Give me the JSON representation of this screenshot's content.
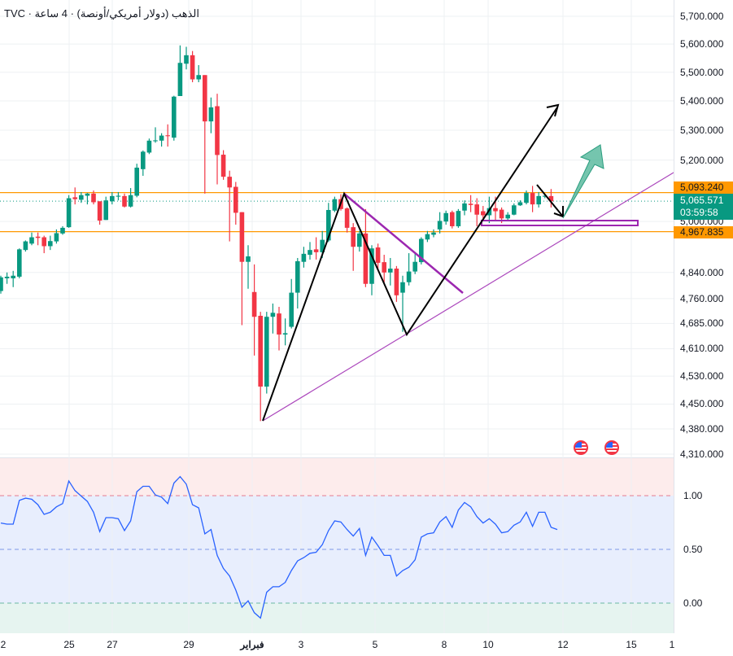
{
  "header": {
    "title": "TVC · الذهب (دولار أمريكي/أونصة) · 4 ساعة"
  },
  "colors": {
    "up": "#089981",
    "down": "#f23645",
    "orange": "#ff9800",
    "purple": "#9c27b0",
    "indicator": "#2962ff"
  },
  "price_axis": {
    "labels": [
      "5,700.000",
      "5,600.000",
      "5,500.000",
      "5,400.000",
      "5,300.000",
      "5,200.000",
      "5,000.000",
      "4,840.000",
      "4,760.000",
      "4,685.000",
      "4,610.000",
      "4,530.000",
      "4,450.000",
      "4,380.000",
      "4,310.000"
    ],
    "values": [
      5700,
      5600,
      5500,
      5400,
      5300,
      5200,
      5000,
      4840,
      4760,
      4685,
      4610,
      4530,
      4450,
      4380,
      4310
    ],
    "scale": "log",
    "range": [
      4310,
      5700
    ]
  },
  "levels": {
    "resistance": {
      "label": "5,093.240",
      "value": 5093.24
    },
    "support": {
      "label": "4,967.835",
      "value": 4967.835
    },
    "last_price": {
      "label": "5,065.571",
      "value": 5065.571,
      "countdown": "03:59:58"
    }
  },
  "time_axis": {
    "labels": [
      "2",
      "25",
      "27",
      "29",
      "فبراير",
      "3",
      "5",
      "8",
      "10",
      "12",
      "15",
      "1"
    ]
  },
  "indicator": {
    "labels": [
      "1.00",
      "0.50",
      "0.00"
    ],
    "range": [
      -0.28,
      1.34
    ],
    "values": [
      0.74,
      0.73,
      0.73,
      0.95,
      0.97,
      0.96,
      0.91,
      0.82,
      0.84,
      0.89,
      0.92,
      1.13,
      1.04,
      0.99,
      0.94,
      0.84,
      0.66,
      0.79,
      0.79,
      0.78,
      0.67,
      0.76,
      1.03,
      1.08,
      1.08,
      1.0,
      0.98,
      0.92,
      1.11,
      1.17,
      1.1,
      0.91,
      0.88,
      0.64,
      0.68,
      0.44,
      0.32,
      0.25,
      0.12,
      -0.04,
      0.02,
      -0.09,
      -0.14,
      0.1,
      0.15,
      0.15,
      0.19,
      0.3,
      0.39,
      0.42,
      0.46,
      0.47,
      0.54,
      0.67,
      0.76,
      0.75,
      0.68,
      0.62,
      0.69,
      0.44,
      0.61,
      0.53,
      0.44,
      0.44,
      0.25,
      0.3,
      0.33,
      0.4,
      0.61,
      0.64,
      0.65,
      0.75,
      0.8,
      0.7,
      0.86,
      0.93,
      0.89,
      0.8,
      0.74,
      0.78,
      0.73,
      0.65,
      0.66,
      0.72,
      0.75,
      0.84,
      0.71,
      0.84,
      0.84,
      0.7,
      0.68
    ]
  },
  "chart_data": {
    "type": "candlestick",
    "title": "TVC · الذهب (دولار أمريكي/أونصة) · 4 ساعة",
    "ylim": [
      4310,
      5700
    ],
    "ohlc": [
      [
        4783,
        4830,
        4775,
        4825
      ],
      [
        4822,
        4840,
        4805,
        4827
      ],
      [
        4822,
        4845,
        4795,
        4830
      ],
      [
        4827,
        4915,
        4822,
        4912
      ],
      [
        4910,
        4940,
        4905,
        4937
      ],
      [
        4930,
        4965,
        4925,
        4950
      ],
      [
        4952,
        4965,
        4925,
        4948
      ],
      [
        4950,
        4955,
        4900,
        4922
      ],
      [
        4922,
        4955,
        4910,
        4938
      ],
      [
        4937,
        4975,
        4930,
        4963
      ],
      [
        4962,
        4985,
        4958,
        4980
      ],
      [
        4982,
        5085,
        4980,
        5075
      ],
      [
        5078,
        5110,
        5055,
        5072
      ],
      [
        5070,
        5095,
        5060,
        5085
      ],
      [
        5083,
        5092,
        5055,
        5090
      ],
      [
        5090,
        5100,
        5055,
        5062
      ],
      [
        5065,
        5065,
        4990,
        5003
      ],
      [
        5005,
        5080,
        5005,
        5068
      ],
      [
        5065,
        5095,
        5055,
        5082
      ],
      [
        5080,
        5095,
        5068,
        5083
      ],
      [
        5082,
        5090,
        5045,
        5048
      ],
      [
        5048,
        5108,
        5045,
        5085
      ],
      [
        5083,
        5188,
        5078,
        5175
      ],
      [
        5170,
        5232,
        5148,
        5228
      ],
      [
        5225,
        5272,
        5220,
        5265
      ],
      [
        5263,
        5310,
        5258,
        5266
      ],
      [
        5265,
        5290,
        5245,
        5282
      ],
      [
        5283,
        5320,
        5245,
        5280
      ],
      [
        5275,
        5418,
        5265,
        5415
      ],
      [
        5417,
        5595,
        5417,
        5533
      ],
      [
        5530,
        5590,
        5510,
        5560
      ],
      [
        5560,
        5575,
        5465,
        5475
      ],
      [
        5475,
        5525,
        5465,
        5490
      ],
      [
        5490,
        5490,
        5090,
        5330
      ],
      [
        5330,
        5412,
        5290,
        5378
      ],
      [
        5382,
        5425,
        5120,
        5217
      ],
      [
        5218,
        5233,
        5135,
        5145
      ],
      [
        5145,
        5165,
        4937,
        5110
      ],
      [
        5112,
        5128,
        4990,
        5028
      ],
      [
        5030,
        5030,
        4680,
        4873
      ],
      [
        4873,
        4925,
        4790,
        4890
      ],
      [
        4780,
        4865,
        4590,
        4705
      ],
      [
        4708,
        4720,
        4402,
        4500
      ],
      [
        4500,
        4720,
        4480,
        4705
      ],
      [
        4705,
        4745,
        4655,
        4717
      ],
      [
        4715,
        4735,
        4605,
        4652
      ],
      [
        4652,
        4700,
        4620,
        4656
      ],
      [
        4675,
        4820,
        4670,
        4778
      ],
      [
        4778,
        4885,
        4730,
        4875
      ],
      [
        4873,
        4920,
        4855,
        4898
      ],
      [
        4895,
        4935,
        4880,
        4910
      ],
      [
        4912,
        4950,
        4880,
        4903
      ],
      [
        4903,
        4970,
        4885,
        4942
      ],
      [
        4940,
        5060,
        4935,
        5037
      ],
      [
        5035,
        5080,
        5030,
        5072
      ],
      [
        5072,
        5088,
        5035,
        5040
      ],
      [
        5042,
        5045,
        4965,
        4980
      ],
      [
        4982,
        4995,
        4845,
        4920
      ],
      [
        4920,
        4970,
        4905,
        4962
      ],
      [
        4962,
        5040,
        4795,
        4805
      ],
      [
        4805,
        4925,
        4770,
        4915
      ],
      [
        4918,
        4930,
        4845,
        4870
      ],
      [
        4872,
        4895,
        4810,
        4840
      ],
      [
        4840,
        4885,
        4800,
        4852
      ],
      [
        4852,
        4860,
        4750,
        4770
      ],
      [
        4778,
        4830,
        4660,
        4810
      ],
      [
        4810,
        4900,
        4800,
        4843
      ],
      [
        4843,
        4900,
        4835,
        4873
      ],
      [
        4872,
        4950,
        4865,
        4945
      ],
      [
        4943,
        4970,
        4935,
        4960
      ],
      [
        4958,
        4975,
        4950,
        4965
      ],
      [
        4975,
        5030,
        4962,
        5002
      ],
      [
        5000,
        5035,
        4990,
        5027
      ],
      [
        5030,
        5035,
        4978,
        4985
      ],
      [
        4985,
        5040,
        4980,
        5034
      ],
      [
        5035,
        5068,
        5020,
        5058
      ],
      [
        5057,
        5085,
        5030,
        5053
      ],
      [
        5055,
        5075,
        4985,
        5022
      ],
      [
        5033,
        5050,
        5010,
        5020
      ],
      [
        5020,
        5080,
        4995,
        5043
      ],
      [
        5043,
        5080,
        5005,
        5033
      ],
      [
        5038,
        5045,
        4995,
        5010
      ],
      [
        5010,
        5030,
        5005,
        5022
      ],
      [
        5022,
        5058,
        5020,
        5052
      ],
      [
        5052,
        5068,
        5050,
        5062
      ],
      [
        5060,
        5100,
        5055,
        5092
      ],
      [
        5092,
        5115,
        5030,
        5055
      ],
      [
        5055,
        5095,
        5045,
        5082
      ],
      [
        5080,
        5088,
        5075,
        5083
      ],
      [
        5082,
        5105,
        5045,
        5065
      ]
    ]
  }
}
